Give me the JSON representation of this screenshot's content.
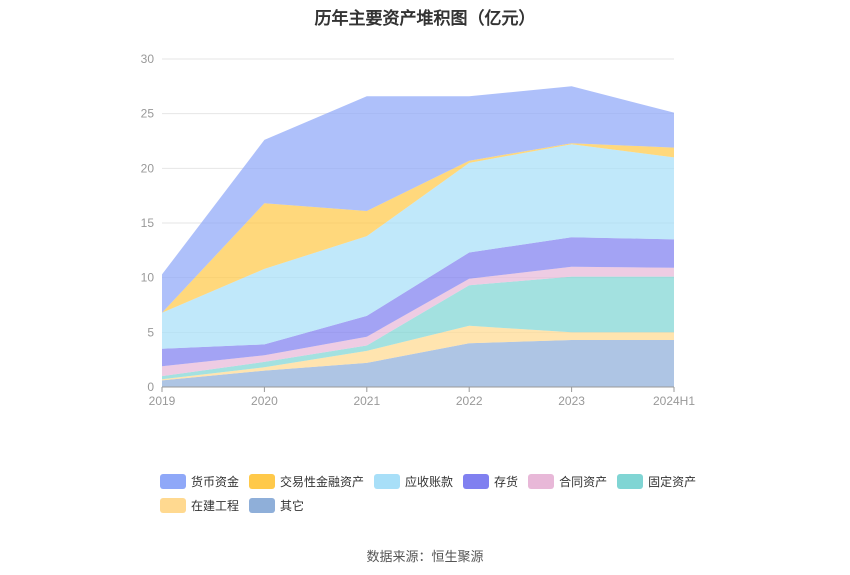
{
  "chart_data": {
    "type": "area",
    "stacked": true,
    "title": "历年主要资产堆积图（亿元）",
    "categories": [
      "2019",
      "2020",
      "2021",
      "2022",
      "2023",
      "2024H1"
    ],
    "ylim": [
      0,
      30
    ],
    "yticks": [
      "0",
      "5",
      "10",
      "15",
      "20",
      "25",
      "30"
    ],
    "grid": true,
    "legend_position": "bottom",
    "series": [
      {
        "name": "其它",
        "color": "#8fafd9",
        "values": [
          0.6,
          1.5,
          2.2,
          4.0,
          4.3,
          4.3
        ]
      },
      {
        "name": "在建工程",
        "color": "#ffd990",
        "values": [
          0.1,
          0.3,
          1.1,
          1.6,
          0.7,
          0.7
        ]
      },
      {
        "name": "固定资产",
        "color": "#80d5d4",
        "values": [
          0.3,
          0.5,
          0.5,
          3.7,
          5.1,
          5.1
        ]
      },
      {
        "name": "合同资产",
        "color": "#e8b8d8",
        "values": [
          0.9,
          0.6,
          0.8,
          0.6,
          0.9,
          0.8
        ]
      },
      {
        "name": "存货",
        "color": "#8080f0",
        "values": [
          1.6,
          1.0,
          1.9,
          2.4,
          2.7,
          2.6
        ]
      },
      {
        "name": "应收账款",
        "color": "#a8dff8",
        "values": [
          3.3,
          6.9,
          7.3,
          8.2,
          8.5,
          7.5
        ]
      },
      {
        "name": "交易性金融资产",
        "color": "#ffc94a",
        "values": [
          0.0,
          6.0,
          2.3,
          0.2,
          0.1,
          0.9
        ]
      },
      {
        "name": "货币资金",
        "color": "#8fa8f8",
        "values": [
          3.5,
          5.8,
          10.5,
          5.9,
          5.2,
          3.2
        ]
      }
    ],
    "legend_order": [
      "货币资金",
      "交易性金融资产",
      "应收账款",
      "存货",
      "合同资产",
      "固定资产",
      "在建工程",
      "其它"
    ]
  },
  "source": "数据来源：恒生聚源"
}
